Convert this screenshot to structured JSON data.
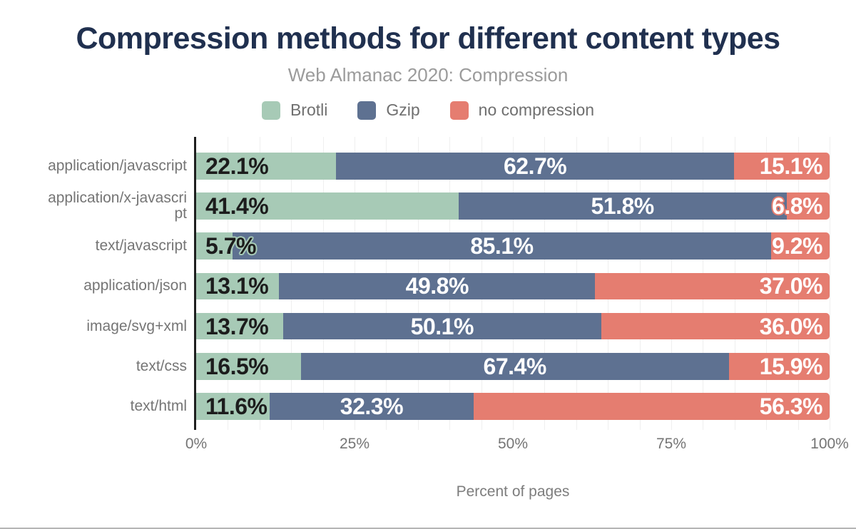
{
  "title": "Compression methods for different content types",
  "subtitle": "Web Almanac 2020: Compression",
  "legend": [
    {
      "label": "Brotli",
      "color": "#a7cab6"
    },
    {
      "label": "Gzip",
      "color": "#5e7191"
    },
    {
      "label": "no compression",
      "color": "#e57d70"
    }
  ],
  "x_axis": {
    "label": "Percent of pages",
    "tick_labels": [
      "0%",
      "25%",
      "50%",
      "75%",
      "100%"
    ],
    "tick_percents": [
      0,
      25,
      50,
      75,
      100
    ]
  },
  "chart_data": {
    "type": "bar",
    "orientation": "horizontal",
    "stacked": true,
    "title": "Compression methods for different content types",
    "subtitle": "Web Almanac 2020: Compression",
    "xlabel": "Percent of pages",
    "ylabel": "",
    "xlim": [
      0,
      100
    ],
    "grid_step_percent": 5,
    "legend_position": "top",
    "value_suffix": "%",
    "categories": [
      "application/javascript",
      "application/x-javascript",
      "text/javascript",
      "application/json",
      "image/svg+xml",
      "text/css",
      "text/html"
    ],
    "series": [
      {
        "name": "Brotli",
        "color": "#a7cab6",
        "label_color": "#1c1c1c",
        "values": [
          22.1,
          41.4,
          5.7,
          13.1,
          13.7,
          16.5,
          11.6
        ]
      },
      {
        "name": "Gzip",
        "color": "#5e7191",
        "label_color": "#ffffff",
        "values": [
          62.7,
          51.8,
          85.1,
          49.8,
          50.1,
          67.4,
          32.3
        ]
      },
      {
        "name": "no compression",
        "color": "#e57d70",
        "label_color": "#ffffff",
        "values": [
          15.1,
          6.8,
          9.2,
          37.0,
          36.0,
          15.9,
          56.3
        ]
      }
    ]
  },
  "layout_colors": {
    "title": "#20304f",
    "subtitle": "#9b9b9b",
    "axis_text": "#757575",
    "grid": "#efefef",
    "axis_line": "#1f1f1f",
    "bottom_border": "#b5b5b5"
  }
}
